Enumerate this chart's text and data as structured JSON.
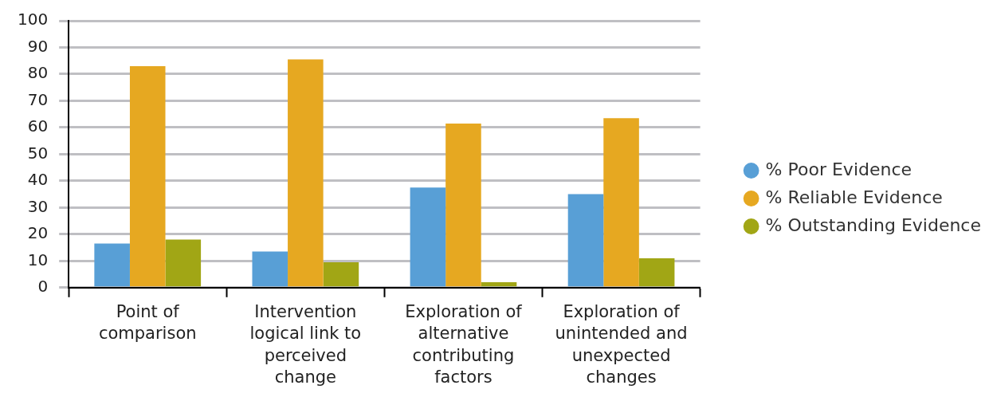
{
  "chart_data": {
    "type": "bar",
    "categories": [
      "Point of comparison",
      "Intervention logical link to perceived change",
      "Exploration of alternative contributing factors",
      "Exploration of unintended and unexpected changes"
    ],
    "series": [
      {
        "name": "% Poor Evidence",
        "color": "#589fd6",
        "values": [
          16.5,
          13.5,
          37.5,
          35
        ]
      },
      {
        "name": "% Reliable Evidence",
        "color": "#e6a821",
        "values": [
          83,
          85.5,
          61.5,
          63.5
        ]
      },
      {
        "name": "% Outstanding Evidence",
        "color": "#a1a615",
        "values": [
          18,
          9.5,
          2,
          11
        ]
      }
    ],
    "ylim": [
      0,
      100
    ],
    "yticks": [
      0,
      10,
      20,
      30,
      40,
      50,
      60,
      70,
      80,
      90,
      100
    ],
    "grid": "y",
    "legend": "right"
  }
}
